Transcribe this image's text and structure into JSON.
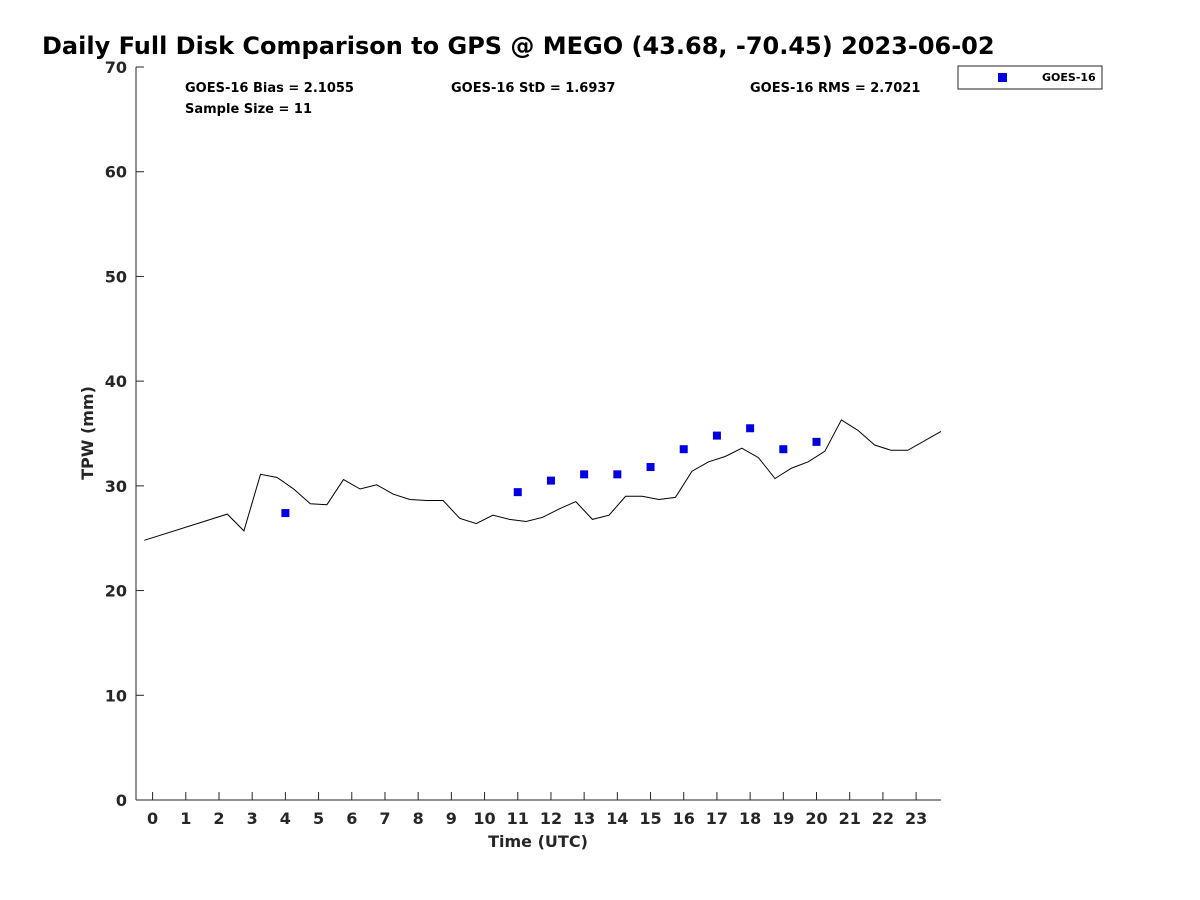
{
  "title": "Daily Full Disk Comparison to GPS @ MEGO (43.68, -70.45) 2023-06-02",
  "stats": {
    "bias": "GOES-16 Bias = 2.1055",
    "std": "GOES-16 StD = 1.6937",
    "rms": "GOES-16 RMS = 2.7021",
    "sample_size": "Sample Size = 11"
  },
  "legend": {
    "label": "GOES-16",
    "color": "#0000e0"
  },
  "colors": {
    "gps_line": "#000000",
    "goes_marker": "#0000e0",
    "axis": "#262626"
  },
  "chart_data": {
    "type": "line",
    "title": "Daily Full Disk Comparison to GPS @ MEGO (43.68, -70.45) 2023-06-02",
    "xlabel": "Time (UTC)",
    "ylabel": "TPW (mm)",
    "xlim": [
      -0.5,
      23.75
    ],
    "ylim": [
      0,
      70
    ],
    "xticks": [
      0,
      1,
      2,
      3,
      4,
      5,
      6,
      7,
      8,
      9,
      10,
      11,
      12,
      13,
      14,
      15,
      16,
      17,
      18,
      19,
      20,
      21,
      22,
      23
    ],
    "yticks": [
      0,
      10,
      20,
      30,
      40,
      50,
      60,
      70
    ],
    "grid": false,
    "legend_position": "top-right, outside",
    "series": [
      {
        "type": "line",
        "x": [
          -0.25,
          2.25,
          2.75,
          3.25,
          3.75,
          4.25,
          4.75,
          5.25,
          5.75,
          6.25,
          6.75,
          7.25,
          7.75,
          8.25,
          8.75,
          9.25,
          9.75,
          10.25,
          10.75,
          11.25,
          11.75,
          12.25,
          12.75,
          13.25,
          13.75,
          14.25,
          14.75,
          15.25,
          15.75,
          16.25,
          16.75,
          17.25,
          17.75,
          18.25,
          18.75,
          19.25,
          19.75,
          20.25,
          20.75,
          21.25,
          21.75,
          22.25,
          22.75,
          23.75
        ],
        "values": [
          24.8,
          27.3,
          25.7,
          31.1,
          30.8,
          29.7,
          28.3,
          28.2,
          30.6,
          29.7,
          30.1,
          29.2,
          28.7,
          28.6,
          28.6,
          26.9,
          26.4,
          27.2,
          26.8,
          26.6,
          27.0,
          27.8,
          28.5,
          26.8,
          27.2,
          29.0,
          29.0,
          28.7,
          28.9,
          31.4,
          32.3,
          32.8,
          33.6,
          32.7,
          30.7,
          31.7,
          32.3,
          33.3,
          36.3,
          35.3,
          33.9,
          33.4,
          33.4,
          35.2
        ]
      },
      {
        "name": "GOES-16",
        "type": "scatter",
        "x": [
          4,
          11,
          12,
          13,
          14,
          15,
          16,
          17,
          18,
          19,
          20
        ],
        "values": [
          27.4,
          29.4,
          30.5,
          31.1,
          31.1,
          31.8,
          33.5,
          34.8,
          35.5,
          33.5,
          34.2
        ]
      }
    ]
  }
}
